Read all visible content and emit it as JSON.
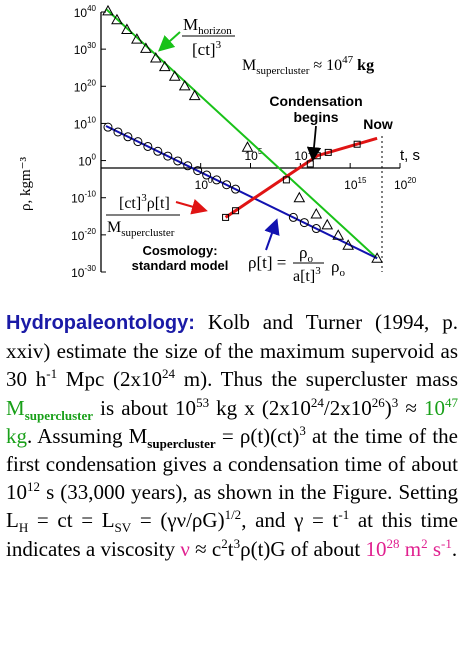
{
  "colors": {
    "horizon_line": "#19c219",
    "density_line": "#1212b0",
    "supercluster_line": "#e01414",
    "lead_text": "#1a1aa6",
    "green_text": "#19a019",
    "pink_text": "#e0208f"
  },
  "chart_data": {
    "type": "line",
    "title": "",
    "xlabel": "t, s",
    "ylabel": "ρ, kgm⁻³",
    "x_scale": "log10",
    "y_scale": "log10",
    "xlim_log10": [
      -10,
      20
    ],
    "ylim_log10": [
      -30,
      40
    ],
    "x_ticks": [
      {
        "log10": 0,
        "base": "10",
        "exp": "0"
      },
      {
        "log10": 5,
        "base": "10",
        "exp": "5"
      },
      {
        "log10": 10,
        "base": "10",
        "exp": "10"
      },
      {
        "log10": 15,
        "base": "10",
        "exp": "15"
      },
      {
        "log10": 20,
        "base": "10",
        "exp": "20"
      }
    ],
    "y_ticks": [
      {
        "log10": 40,
        "base": "10",
        "exp": "40"
      },
      {
        "log10": 30,
        "base": "10",
        "exp": "30"
      },
      {
        "log10": 20,
        "base": "10",
        "exp": "20"
      },
      {
        "log10": 10,
        "base": "10",
        "exp": "10"
      },
      {
        "log10": 0,
        "base": "10",
        "exp": "0"
      },
      {
        "log10": -10,
        "base": "10",
        "exp": "-10"
      },
      {
        "log10": -20,
        "base": "10",
        "exp": "-20"
      },
      {
        "log10": -30,
        "base": "10",
        "exp": "-30"
      }
    ],
    "series": [
      {
        "name": "horizon",
        "color": "#19c219",
        "marker": "triangle",
        "line": {
          "log10_t": [
            -9.5,
            17.7
          ],
          "log10_rho": [
            40.8,
            -26.3
          ]
        },
        "points": {
          "log10_t": [
            -9.3,
            -8.4,
            -7.4,
            -6.4,
            -5.5,
            -4.5,
            -3.6,
            -2.6,
            -1.6,
            -0.6,
            4.7,
            9.9,
            11.6,
            12.7,
            13.8,
            14.8,
            17.7
          ],
          "log10_rho": [
            40.3,
            37.9,
            35.3,
            32.7,
            30.2,
            27.6,
            25.3,
            22.7,
            20.1,
            17.5,
            3.6,
            -10.0,
            -14.4,
            -17.3,
            -20.1,
            -22.8,
            -26.3
          ]
        }
      },
      {
        "name": "density",
        "color": "#1212b0",
        "marker": "circle",
        "line": {
          "log10_t": [
            -9.5,
            17.7
          ],
          "log10_rho": [
            9.3,
            -26.3
          ]
        },
        "points": {
          "log10_t": [
            -9.3,
            -8.3,
            -7.3,
            -6.3,
            -5.3,
            -4.3,
            -3.3,
            -2.3,
            -1.3,
            -0.3,
            0.6,
            1.6,
            2.6,
            3.5,
            9.3,
            10.4,
            11.6
          ],
          "log10_rho": [
            9.0,
            7.7,
            6.4,
            5.1,
            3.8,
            2.5,
            1.2,
            -0.1,
            -1.4,
            -2.7,
            -3.9,
            -5.2,
            -6.5,
            -7.7,
            -15.3,
            -16.7,
            -18.3
          ]
        }
      },
      {
        "name": "supercluster",
        "color": "#e01414",
        "marker": "square",
        "line": {
          "log10_t": [
            2.5,
            11.7,
            17.7
          ],
          "log10_rho": [
            -15.3,
            1.3,
            6.0
          ]
        },
        "points": {
          "log10_t": [
            2.5,
            3.5,
            8.6,
            11.0,
            11.7,
            12.8,
            15.7
          ],
          "log10_rho": [
            -15.3,
            -13.5,
            -5.2,
            -0.9,
            1.3,
            2.2,
            4.4
          ]
        }
      }
    ],
    "annotations": {
      "horizon_num": "M",
      "horizon_num_sub": "horizon",
      "horizon_den": "[ct]",
      "horizon_den_sup": "3",
      "supercluster_mass_base": "M",
      "supercluster_mass_sub": "supercluster",
      "supercluster_mass_rel": " ≈ 10",
      "supercluster_mass_exp": "47",
      "supercluster_mass_unit": " kg",
      "condensation_line1": "Condensation",
      "condensation_line2": "begins",
      "now": "Now",
      "red_num": "[ct]",
      "red_num_sup": "3",
      "red_num_rest": "ρ[t]",
      "red_den": "M",
      "red_den_sub": "supercluster",
      "cosmology_line1": "Cosmology:",
      "cosmology_line2": "standard model",
      "rho_lhs": "ρ[t] =",
      "rho_num": "ρ",
      "rho_num_sub": "o",
      "rho_den": "a[t]",
      "rho_den_sup": "3",
      "rho_o": "ρ",
      "rho_o_sub": "o"
    }
  },
  "caption": {
    "lead": "Hydropaleontology:",
    "t1": " Kolb and Turner (1994, p. xxiv) estimate the size of the maximum supervoid as 30 h",
    "t1_sup": "-1",
    "t2": " Mpc (2x10",
    "t2_sup": "24",
    "t3": " m). Thus the supercluster mass ",
    "m_base": "M",
    "m_sub": "supercluster",
    "t4": " is about 10",
    "t4_sup": "53",
    "t5": " kg x (2x10",
    "t5_sup": "24",
    "t6": "/2x10",
    "t6_sup": "26",
    "t7": ")",
    "t7_sup": "3",
    "t8": " ≈ ",
    "g_val": "10",
    "g_val_sup": "47",
    "g_unit": " kg",
    "t9": ". Assuming M",
    "t9_sub": "supercluster",
    "t10": " = ρ(t)(ct)",
    "t10_sup": "3",
    "t11": " at the time of the first condensation gives a condensation time of about 10",
    "t11_sup": "12",
    "t12": " s (33,000 years), as shown in the Figure. Setting L",
    "t12_sub": "H",
    "t13": " = ct = L",
    "t13_sub": "SV",
    "t14": " = (γν/ρG)",
    "t14_sup": "1/2",
    "t15": ", and γ = t",
    "t15_sup": "-1",
    "t16": " at this time indicates a viscosity ",
    "nu": "ν",
    "t17": " ≈ c",
    "t17_sup": "2",
    "t18": "t",
    "t18_sup": "3",
    "t19": "ρ(t)G of about ",
    "p_val": "10",
    "p_val_sup": "28",
    "p_unit": " m",
    "p_unit_sup": "2",
    "p_unit2": " s",
    "p_unit2_sup": "-1",
    "t20": "."
  }
}
